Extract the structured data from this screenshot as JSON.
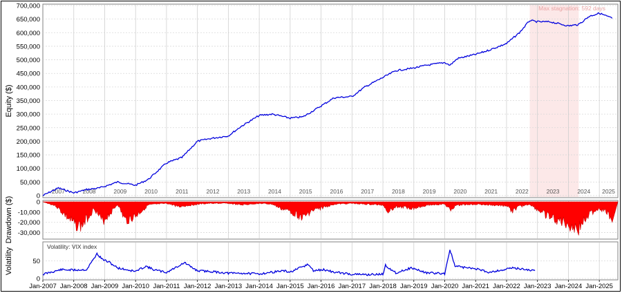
{
  "chart_data": [
    {
      "type": "line",
      "panel": "equity",
      "ylabel": "Equity ($)",
      "ylim": [
        0,
        700000
      ],
      "yticks": [
        "0",
        "50,000",
        "100,000",
        "150,000",
        "200,000",
        "250,000",
        "300,000",
        "350,000",
        "400,000",
        "450,000",
        "500,000",
        "550,000",
        "600,000",
        "650,000",
        "700,000"
      ],
      "year_labels": [
        "2007",
        "2008",
        "2009",
        "2010",
        "2011",
        "2012",
        "2013",
        "2014",
        "2015",
        "2016",
        "2017",
        "2018",
        "2019",
        "2020",
        "2021",
        "2022",
        "2023",
        "2024",
        "2025"
      ],
      "annotation": "Max stagnation: 592 days",
      "stagnation_range": [
        "2022-10",
        "2024-05"
      ],
      "grid": true,
      "series": [
        {
          "color": "#0000dd",
          "x": [
            "2007-01",
            "2007-07",
            "2008-01",
            "2008-06",
            "2008-11",
            "2009-03",
            "2009-06",
            "2010-01",
            "2010-06",
            "2011-01",
            "2011-07",
            "2012-01",
            "2012-06",
            "2013-01",
            "2013-06",
            "2014-01",
            "2014-06",
            "2015-01",
            "2015-06",
            "2016-01",
            "2016-06",
            "2017-01",
            "2017-06",
            "2018-01",
            "2018-06",
            "2019-01",
            "2019-06",
            "2020-01",
            "2020-03",
            "2020-06",
            "2021-01",
            "2021-06",
            "2022-01",
            "2022-06",
            "2022-10",
            "2023-01",
            "2023-06",
            "2024-01",
            "2024-05",
            "2024-09",
            "2025-01",
            "2025-06"
          ],
          "values": [
            0,
            28000,
            10000,
            22000,
            28000,
            40000,
            50000,
            38000,
            60000,
            120000,
            140000,
            200000,
            210000,
            220000,
            255000,
            295000,
            300000,
            285000,
            290000,
            330000,
            360000,
            365000,
            400000,
            435000,
            460000,
            470000,
            480000,
            490000,
            480000,
            505000,
            520000,
            535000,
            560000,
            600000,
            645000,
            640000,
            640000,
            625000,
            630000,
            660000,
            672000,
            653000
          ]
        }
      ]
    },
    {
      "type": "area",
      "panel": "drawdown",
      "ylabel": "Drawdown ($)",
      "ylim": [
        -35000,
        0
      ],
      "yticks": [
        "0",
        "-10,000",
        "-20,000",
        "-30,000"
      ],
      "grid": true,
      "series": [
        {
          "color": "#ff0000",
          "x": [
            "2007-01",
            "2007-06",
            "2007-09",
            "2008-01",
            "2008-04",
            "2008-06",
            "2008-09",
            "2008-12",
            "2009-03",
            "2009-06",
            "2009-09",
            "2010-01",
            "2010-06",
            "2011-01",
            "2011-06",
            "2012-01",
            "2012-06",
            "2013-01",
            "2013-06",
            "2014-01",
            "2014-06",
            "2014-09",
            "2015-01",
            "2015-06",
            "2015-09",
            "2016-01",
            "2016-06",
            "2017-01",
            "2017-06",
            "2018-01",
            "2018-03",
            "2018-06",
            "2019-01",
            "2019-06",
            "2020-01",
            "2020-03",
            "2020-06",
            "2021-01",
            "2021-06",
            "2022-01",
            "2022-03",
            "2022-06",
            "2022-10",
            "2023-01",
            "2023-06",
            "2024-01",
            "2024-03",
            "2024-05",
            "2024-08",
            "2025-01",
            "2025-04",
            "2025-06"
          ],
          "values": [
            0,
            -5000,
            -15000,
            -28000,
            -31000,
            -22000,
            -8000,
            -25000,
            -15000,
            -3000,
            -24000,
            -18000,
            -4000,
            -2000,
            -6000,
            -3000,
            -2000,
            -2000,
            -4000,
            -2000,
            -3000,
            -8000,
            -12000,
            -20000,
            -12000,
            -8000,
            -3000,
            -2000,
            -3000,
            -4000,
            -12000,
            -6000,
            -8000,
            -4000,
            -3000,
            -10000,
            -4000,
            -3000,
            -4000,
            -5000,
            -12000,
            -6000,
            -3000,
            -10000,
            -20000,
            -28000,
            -32000,
            -35000,
            -18000,
            -8000,
            -14000,
            -20000
          ]
        }
      ]
    },
    {
      "type": "line",
      "panel": "volatility",
      "ylabel": "Volatility",
      "legend": "Volatility: VIX index",
      "ylim": [
        0,
        100
      ],
      "yticks": [
        "0",
        "50"
      ],
      "xticks": [
        "Jan-2007",
        "Jan-2008",
        "Jan-2009",
        "Jan-2010",
        "Jan-2011",
        "Jan-2012",
        "Jan-2013",
        "Jan-2014",
        "Jan-2015",
        "Jan-2016",
        "Jan-2017",
        "Jan-2018",
        "Jan-2019",
        "Jan-2020",
        "Jan-2021",
        "Jan-2022",
        "Jan-2023",
        "Jan-2024",
        "Jan-2025"
      ],
      "series": [
        {
          "name": "Volatility: VIX index",
          "color": "#0000dd",
          "x": [
            "2007-01",
            "2007-08",
            "2008-01",
            "2008-06",
            "2008-10",
            "2008-12",
            "2009-03",
            "2009-06",
            "2010-01",
            "2010-05",
            "2010-08",
            "2011-01",
            "2011-08",
            "2011-10",
            "2012-01",
            "2012-06",
            "2013-01",
            "2013-06",
            "2014-01",
            "2014-10",
            "2015-01",
            "2015-08",
            "2015-10",
            "2016-02",
            "2016-06",
            "2017-01",
            "2017-06",
            "2018-01",
            "2018-02",
            "2018-06",
            "2018-12",
            "2019-06",
            "2020-01",
            "2020-03",
            "2020-05",
            "2020-10",
            "2021-01",
            "2021-06",
            "2021-12",
            "2022-03",
            "2022-06",
            "2022-12"
          ],
          "values": [
            12,
            25,
            24,
            25,
            70,
            55,
            45,
            30,
            20,
            35,
            25,
            17,
            45,
            35,
            22,
            20,
            15,
            15,
            13,
            22,
            18,
            40,
            22,
            25,
            18,
            12,
            11,
            12,
            37,
            16,
            30,
            16,
            14,
            82,
            35,
            30,
            28,
            18,
            25,
            30,
            28,
            22
          ]
        }
      ]
    }
  ]
}
